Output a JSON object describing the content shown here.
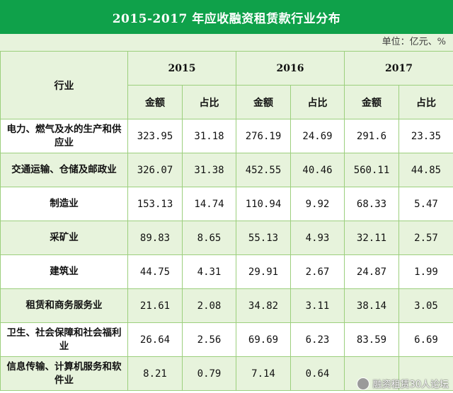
{
  "title": "2015-2017 年应收融资租赁款行业分布",
  "unit": "单位：亿元、%",
  "header": {
    "industry": "行业",
    "years": [
      "2015",
      "2016",
      "2017"
    ],
    "amount": "金额",
    "ratio": "占比"
  },
  "rows": [
    {
      "industry": "电力、燃气及水的生产和供应业",
      "values": [
        "323.95",
        "31.18",
        "276.19",
        "24.69",
        "291.6",
        "23.35"
      ]
    },
    {
      "industry": "交通运输、仓储及邮政业",
      "values": [
        "326.07",
        "31.38",
        "452.55",
        "40.46",
        "560.11",
        "44.85"
      ]
    },
    {
      "industry": "制造业",
      "values": [
        "153.13",
        "14.74",
        "110.94",
        "9.92",
        "68.33",
        "5.47"
      ]
    },
    {
      "industry": "采矿业",
      "values": [
        "89.83",
        "8.65",
        "55.13",
        "4.93",
        "32.11",
        "2.57"
      ]
    },
    {
      "industry": "建筑业",
      "values": [
        "44.75",
        "4.31",
        "29.91",
        "2.67",
        "24.87",
        "1.99"
      ]
    },
    {
      "industry": "租赁和商务服务业",
      "values": [
        "21.61",
        "2.08",
        "34.82",
        "3.11",
        "38.14",
        "3.05"
      ]
    },
    {
      "industry": "卫生、社会保障和社会福利业",
      "values": [
        "26.64",
        "2.56",
        "69.69",
        "6.23",
        "83.59",
        "6.69"
      ]
    },
    {
      "industry": "信息传输、计算机服务和软件业",
      "values": [
        "8.21",
        "0.79",
        "7.14",
        "0.64",
        "",
        ""
      ]
    }
  ],
  "watermark": {
    "text": "融资租赁30人论坛",
    "icon": "wechat-avatar-icon"
  }
}
